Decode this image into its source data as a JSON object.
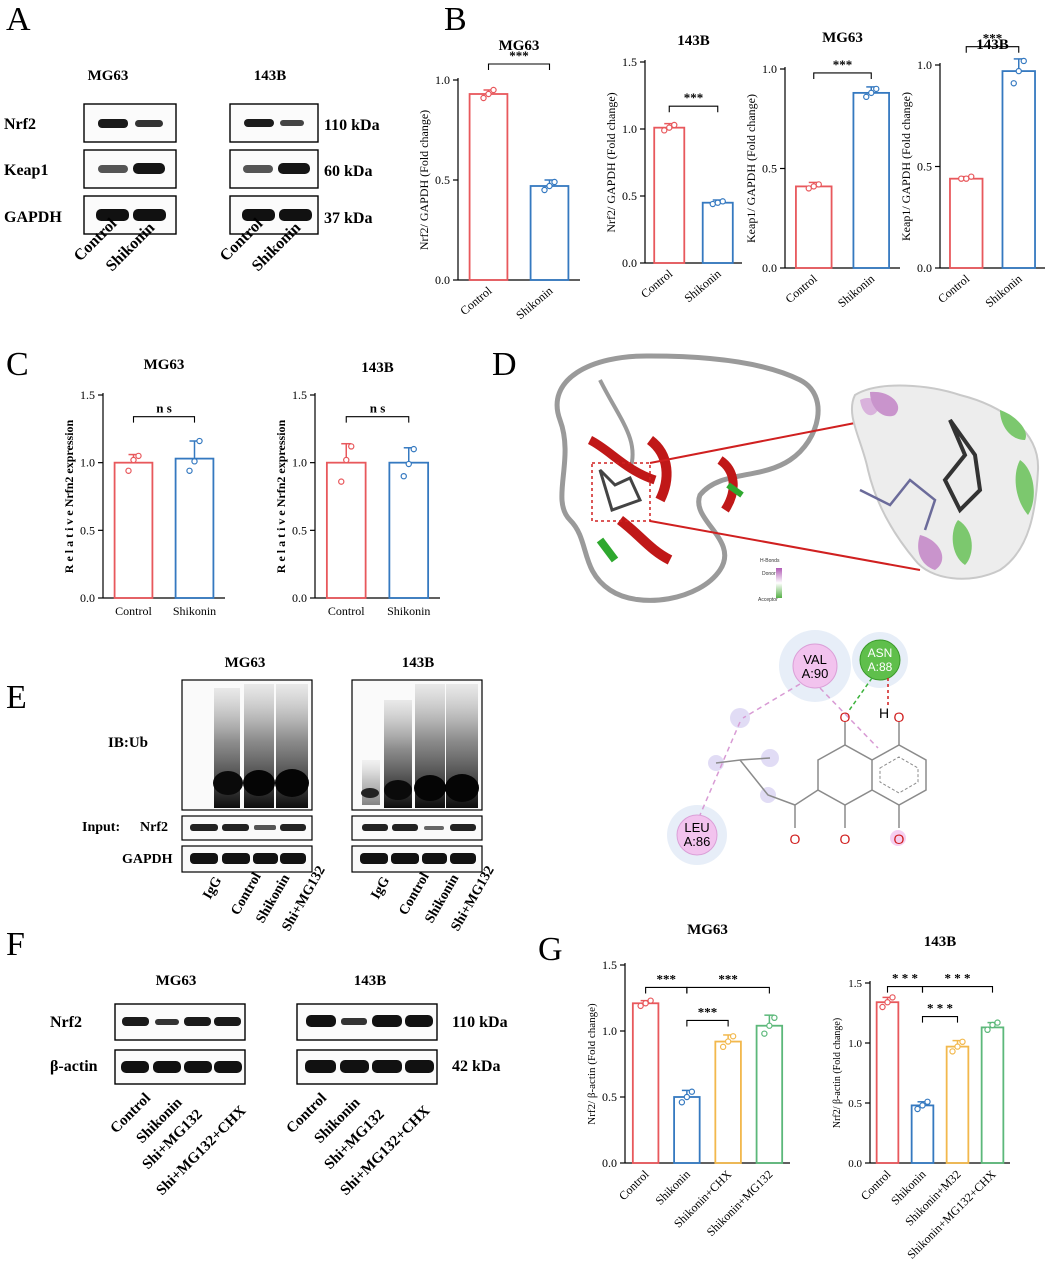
{
  "panels": {
    "A": {
      "letter": "A",
      "cells": [
        {
          "name": "MG63",
          "x": 82,
          "y": 100
        },
        {
          "name": "143B",
          "x": 232,
          "y": 100
        }
      ],
      "proteins": [
        "Nrf2",
        "Keap1",
        "GAPDH"
      ],
      "kda": [
        "110 kDa",
        "60 kDa",
        "37 kDa"
      ],
      "lanes": [
        "Control",
        "Shikonin"
      ]
    },
    "B": {
      "letter": "B"
    },
    "C": {
      "letter": "C"
    },
    "D": {
      "letter": "D",
      "legend_title": "H-Bonds",
      "legend_donor": "Donor",
      "legend_acceptor": "Acceptor",
      "residues": [
        {
          "name": "VAL",
          "id": "A:90"
        },
        {
          "name": "ASN",
          "id": "A:88"
        },
        {
          "name": "LEU",
          "id": "A:86"
        }
      ],
      "atoms": [
        "O",
        "H",
        "O",
        "O",
        "O",
        "O"
      ]
    },
    "E": {
      "letter": "E",
      "cells": [
        "MG63",
        "143B"
      ],
      "ib_label": "IB:Ub",
      "input_label": "Input:",
      "nrf2_label": "Nrf2",
      "gapdh_label": "GAPDH",
      "lanes": [
        "IgG",
        "Control",
        "Shikonin",
        "Shi+MG132"
      ]
    },
    "F": {
      "letter": "F",
      "cells": [
        "MG63",
        "143B"
      ],
      "proteins": [
        "Nrf2",
        "β-actin"
      ],
      "kda": [
        "110 kDa",
        "42 kDa"
      ],
      "lanes": [
        "Control",
        "Shikonin",
        "Shi+MG132",
        "Shi+MG132+CHX"
      ]
    },
    "G": {
      "letter": "G"
    }
  },
  "colors": {
    "red": "#e8585c",
    "blue": "#3579c0",
    "yellow": "#f2b84c",
    "green": "#5cb87a"
  },
  "chart_data": [
    {
      "id": "B1",
      "type": "bar",
      "title": "MG63",
      "ylabel": "Nrf2/ GAPDH (Fold change)",
      "ylim": [
        0,
        1.0
      ],
      "yticks": [
        "0.0",
        "0.5",
        "1.0"
      ],
      "categories": [
        "Control",
        "Shikonin"
      ],
      "values": [
        0.93,
        0.47
      ],
      "errors": [
        0.02,
        0.03
      ],
      "points": [
        [
          0.91,
          0.93,
          0.95
        ],
        [
          0.45,
          0.47,
          0.49
        ]
      ],
      "colors": [
        "#e8585c",
        "#3579c0"
      ],
      "significance": [
        {
          "from": 0,
          "to": 1,
          "label": "***",
          "level": 1.08
        }
      ]
    },
    {
      "id": "B2",
      "type": "bar",
      "title": "143B",
      "ylabel": "Nrf2/ GAPDH (Fold change)",
      "ylim": [
        0,
        1.5
      ],
      "yticks": [
        "0.0",
        "0.5",
        "1.0",
        "1.5"
      ],
      "categories": [
        "Control",
        "Shikonin"
      ],
      "values": [
        1.01,
        0.45
      ],
      "errors": [
        0.03,
        0.02
      ],
      "points": [
        [
          0.99,
          1.01,
          1.03
        ],
        [
          0.44,
          0.45,
          0.46
        ]
      ],
      "colors": [
        "#e8585c",
        "#3579c0"
      ],
      "significance": [
        {
          "from": 0,
          "to": 1,
          "label": "***",
          "level": 1.17
        }
      ]
    },
    {
      "id": "B3",
      "type": "bar",
      "title": "MG63",
      "ylabel": "Keap1/ GAPDH (Fold change)",
      "ylim": [
        0,
        1.0
      ],
      "yticks": [
        "0.0",
        "0.5",
        "1.0"
      ],
      "categories": [
        "Control",
        "Shikonin"
      ],
      "values": [
        0.41,
        0.88
      ],
      "errors": [
        0.02,
        0.03
      ],
      "points": [
        [
          0.4,
          0.41,
          0.42
        ],
        [
          0.86,
          0.88,
          0.9
        ]
      ],
      "colors": [
        "#e8585c",
        "#3579c0"
      ],
      "significance": [
        {
          "from": 0,
          "to": 1,
          "label": "***",
          "level": 0.98
        }
      ]
    },
    {
      "id": "B4",
      "type": "bar",
      "title": "143B",
      "ylabel": "Keap1/ GAPDH (Fold change)",
      "ylim": [
        0,
        1.0
      ],
      "yticks": [
        "0.0",
        "0.5",
        "1.0"
      ],
      "categories": [
        "Control",
        "Shikonin"
      ],
      "values": [
        0.44,
        0.97
      ],
      "errors": [
        0.01,
        0.06
      ],
      "points": [
        [
          0.44,
          0.44,
          0.45
        ],
        [
          0.91,
          0.97,
          1.02
        ]
      ],
      "colors": [
        "#e8585c",
        "#3579c0"
      ],
      "significance": [
        {
          "from": 0,
          "to": 1,
          "label": "***",
          "level": 1.09
        }
      ]
    },
    {
      "id": "C1",
      "type": "bar",
      "title": "MG63",
      "ylabel": "R e l a t i v e   Nrfn2 expression",
      "ylim": [
        0,
        1.5
      ],
      "yticks": [
        "0.0",
        "0.5",
        "1.0",
        "1.5"
      ],
      "categories": [
        "Control",
        "Shikonin"
      ],
      "values": [
        1.0,
        1.03
      ],
      "errors": [
        0.06,
        0.13
      ],
      "points": [
        [
          0.94,
          1.02,
          1.05
        ],
        [
          0.94,
          1.01,
          1.16
        ]
      ],
      "colors": [
        "#e8585c",
        "#3579c0"
      ],
      "significance": [
        {
          "from": 0,
          "to": 1,
          "label": "n s",
          "level": 1.34
        }
      ]
    },
    {
      "id": "C2",
      "type": "bar",
      "title": "143B",
      "ylabel": "R e l a t i v e   Nrfn2 expression",
      "ylim": [
        0,
        1.5
      ],
      "yticks": [
        "0.0",
        "0.5",
        "1.0",
        "1.5"
      ],
      "categories": [
        "Control",
        "Shikonin"
      ],
      "values": [
        1.0,
        1.0
      ],
      "errors": [
        0.14,
        0.11
      ],
      "points": [
        [
          0.86,
          1.02,
          1.12
        ],
        [
          0.9,
          0.99,
          1.1
        ]
      ],
      "colors": [
        "#e8585c",
        "#3579c0"
      ],
      "significance": [
        {
          "from": 0,
          "to": 1,
          "label": "n s",
          "level": 1.34
        }
      ]
    },
    {
      "id": "G1",
      "type": "bar",
      "title": "MG63",
      "ylabel": "Nrf2/ β-actin (Fold change)",
      "ylim": [
        0,
        1.5
      ],
      "yticks": [
        "0.0",
        "0.5",
        "1.0",
        "1.5"
      ],
      "categories": [
        "Control",
        "Shikonin",
        "Shikonin+CHX",
        "Shikonin+MG132"
      ],
      "values": [
        1.21,
        0.5,
        0.92,
        1.04
      ],
      "errors": [
        0.02,
        0.05,
        0.05,
        0.08
      ],
      "points": [
        [
          1.19,
          1.21,
          1.23
        ],
        [
          0.46,
          0.5,
          0.54
        ],
        [
          0.88,
          0.92,
          0.96
        ],
        [
          0.98,
          1.04,
          1.1
        ]
      ],
      "colors": [
        "#e8585c",
        "#3579c0",
        "#f2b84c",
        "#5cb87a"
      ],
      "significance": [
        {
          "from": 0,
          "to": 1,
          "label": "***",
          "level": 1.33
        },
        {
          "from": 1,
          "to": 2,
          "label": "***",
          "level": 1.08
        },
        {
          "from": 1,
          "to": 3,
          "label": "***",
          "level": 1.33
        }
      ]
    },
    {
      "id": "G2",
      "type": "bar",
      "title": "143B",
      "ylabel": "Nrf2/ β-actin (Fold change)",
      "ylim": [
        0,
        1.5
      ],
      "yticks": [
        "0.0",
        "0.5",
        "1.0",
        "1.5"
      ],
      "categories": [
        "Control",
        "Shikonin",
        "Shikonin+M32",
        "Shikonin+MG132+CHX"
      ],
      "values": [
        1.34,
        0.48,
        0.97,
        1.13
      ],
      "errors": [
        0.04,
        0.03,
        0.05,
        0.04
      ],
      "points": [
        [
          1.3,
          1.34,
          1.38
        ],
        [
          0.45,
          0.48,
          0.51
        ],
        [
          0.93,
          0.97,
          1.01
        ],
        [
          1.11,
          1.15,
          1.17
        ]
      ],
      "colors": [
        "#e8585c",
        "#3579c0",
        "#f2b84c",
        "#5cb87a"
      ],
      "significance": [
        {
          "from": 0,
          "to": 1,
          "label": "* * *",
          "level": 1.47
        },
        {
          "from": 1,
          "to": 2,
          "label": "* * *",
          "level": 1.22
        },
        {
          "from": 1,
          "to": 3,
          "label": "* * *",
          "level": 1.47
        }
      ]
    }
  ]
}
